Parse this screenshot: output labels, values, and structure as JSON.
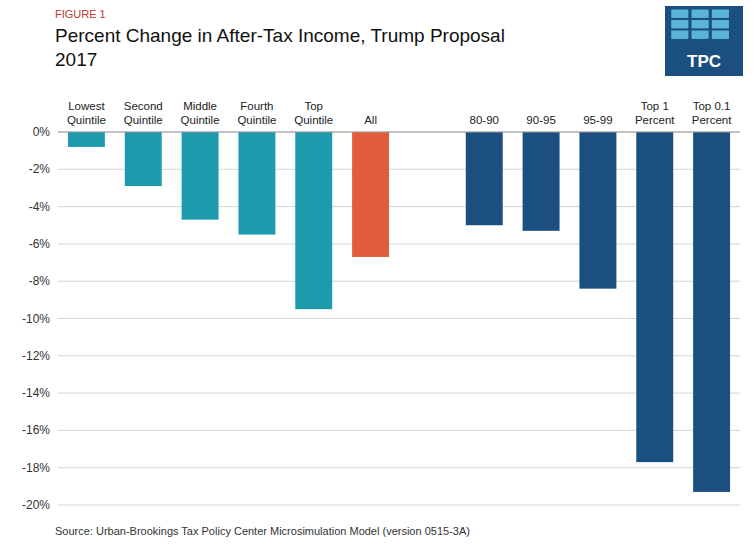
{
  "chart_data": {
    "type": "bar",
    "title": "Percent Change in After-Tax Income, Trump Proposal",
    "subtitle": "2017",
    "annotations": [
      "FIGURE 1",
      "Source:  Urban-Brookings Tax Policy Center Microsimulation Model (version 0515-3A)",
      "TPC"
    ],
    "categories": [
      "Lowest\nQuintile",
      "Second\nQuintile",
      "Middle\nQuintile",
      "Fourth\nQuintile",
      "Top\nQuintile",
      "All",
      null,
      "80-90",
      "90-95",
      "95-99",
      "Top 1\nPercent",
      "Top 0.1\nPercent"
    ],
    "values": [
      -0.8,
      -2.9,
      -4.7,
      -5.5,
      -9.5,
      -6.7,
      null,
      -5.0,
      -5.3,
      -8.4,
      -17.7,
      -19.3
    ],
    "colors": [
      "#1d9bac",
      "#1d9bac",
      "#1d9bac",
      "#1d9bac",
      "#1d9bac",
      "#e05c3a",
      null,
      "#1b4f80",
      "#1b4f80",
      "#1b4f80",
      "#1b4f80",
      "#1b4f80"
    ],
    "ylim": [
      -20,
      0
    ],
    "yticks": [
      {
        "value": 0,
        "label": "0%"
      },
      {
        "value": -2,
        "label": "-2%"
      },
      {
        "value": -4,
        "label": "-4%"
      },
      {
        "value": -6,
        "label": "-6%"
      },
      {
        "value": -8,
        "label": "-8%"
      },
      {
        "value": -10,
        "label": "-10%"
      },
      {
        "value": -12,
        "label": "-12%"
      },
      {
        "value": -14,
        "label": "-14%"
      },
      {
        "value": -16,
        "label": "-16%"
      },
      {
        "value": -18,
        "label": "-18%"
      },
      {
        "value": -20,
        "label": "-20%"
      }
    ],
    "grid": true
  }
}
